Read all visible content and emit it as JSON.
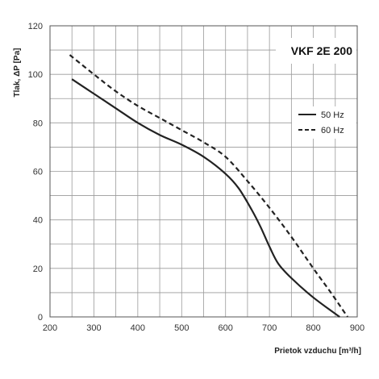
{
  "chart_data": {
    "type": "line",
    "title": "VKF 2E 200",
    "xlabel": "Prietok vzduchu [m³/h]",
    "ylabel": "Tlak, ΔP [Pa]",
    "xlim": [
      200,
      900
    ],
    "ylim": [
      0,
      120
    ],
    "x_ticks": [
      200,
      300,
      400,
      500,
      600,
      700,
      800,
      900
    ],
    "y_ticks": [
      0,
      20,
      40,
      60,
      80,
      100,
      120
    ],
    "grid": true,
    "legend_position": "right",
    "series": [
      {
        "name": "50 Hz",
        "style": "solid",
        "color": "#222222",
        "x": [
          250,
          300,
          350,
          400,
          450,
          500,
          550,
          600,
          630,
          660,
          680,
          700,
          720,
          750,
          800,
          860
        ],
        "y": [
          98,
          92,
          86,
          80,
          75,
          71,
          66,
          59,
          53,
          44,
          37,
          29,
          22,
          16,
          8,
          0
        ]
      },
      {
        "name": "60 Hz",
        "style": "dashed",
        "color": "#222222",
        "x": [
          245,
          300,
          350,
          400,
          450,
          500,
          550,
          600,
          650,
          700,
          750,
          800,
          840,
          878
        ],
        "y": [
          108,
          100,
          93,
          87,
          82,
          77,
          72,
          66,
          56,
          45,
          33,
          20,
          10,
          0
        ]
      }
    ]
  }
}
